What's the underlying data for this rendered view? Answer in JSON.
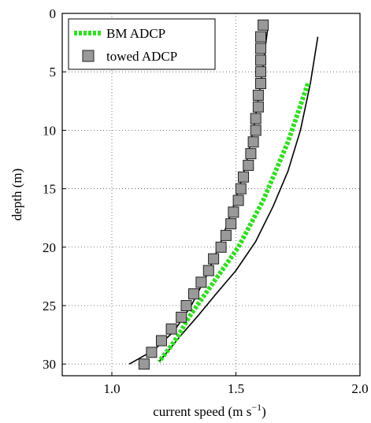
{
  "chart_data": {
    "type": "line",
    "xlabel": "current speed (m s",
    "xlabel_sup": "−1",
    "xlabel_close": ")",
    "ylabel": "depth (m)",
    "xlim": [
      0.8,
      2.0
    ],
    "ylim": [
      0,
      31
    ],
    "y_inverted": true,
    "grid": true,
    "legend_position": "top-left",
    "x_ticks": [
      {
        "value": 1.0,
        "label": "1.0"
      },
      {
        "value": 1.5,
        "label": "1.5"
      },
      {
        "value": 2.0,
        "label": "2.0"
      }
    ],
    "y_ticks": [
      {
        "value": 0,
        "label": "0"
      },
      {
        "value": 5,
        "label": "5"
      },
      {
        "value": 10,
        "label": "10"
      },
      {
        "value": 15,
        "label": "15"
      },
      {
        "value": 20,
        "label": "20"
      },
      {
        "value": 25,
        "label": "25"
      },
      {
        "value": 30,
        "label": "30"
      }
    ],
    "series": [
      {
        "name": "BM ADCP",
        "style": "dotted-line",
        "color": "#33dd22",
        "x": [
          1.79,
          1.75,
          1.71,
          1.66,
          1.61,
          1.56,
          1.51,
          1.46,
          1.41,
          1.36,
          1.31,
          1.27,
          1.23,
          1.19
        ],
        "y": [
          6,
          8.5,
          11,
          13.5,
          16,
          18,
          20,
          21.5,
          23,
          24.5,
          26,
          27.5,
          28.7,
          29.8
        ]
      },
      {
        "name": "towed ADCP",
        "style": "square-markers",
        "color": "#999999",
        "x": [
          1.61,
          1.6,
          1.6,
          1.6,
          1.6,
          1.6,
          1.59,
          1.59,
          1.58,
          1.58,
          1.57,
          1.56,
          1.55,
          1.53,
          1.52,
          1.51,
          1.49,
          1.48,
          1.46,
          1.44,
          1.41,
          1.39,
          1.36,
          1.33,
          1.3,
          1.28,
          1.24,
          1.2,
          1.16,
          1.13
        ],
        "y": [
          1,
          2,
          3,
          4,
          5,
          6,
          7,
          8,
          9,
          10,
          11,
          12,
          13,
          14,
          15,
          16,
          17,
          18,
          19,
          20,
          21,
          22,
          23,
          24,
          25,
          26,
          27,
          28,
          29,
          30
        ]
      }
    ],
    "fit_lines": [
      {
        "color": "#000000",
        "x": [
          1.63,
          1.6,
          1.57,
          1.54,
          1.49,
          1.44,
          1.38,
          1.32,
          1.25,
          1.17,
          1.07
        ],
        "y": [
          1,
          6,
          10,
          13,
          16.5,
          19.5,
          22.5,
          25,
          27.2,
          28.8,
          30
        ]
      },
      {
        "color": "#000000",
        "x": [
          1.83,
          1.8,
          1.76,
          1.71,
          1.65,
          1.58,
          1.5,
          1.42,
          1.35,
          1.28,
          1.23,
          1.19
        ],
        "y": [
          2,
          6,
          10,
          13.5,
          16.5,
          19.5,
          22,
          24,
          25.8,
          27.5,
          28.8,
          29.8
        ]
      }
    ]
  }
}
